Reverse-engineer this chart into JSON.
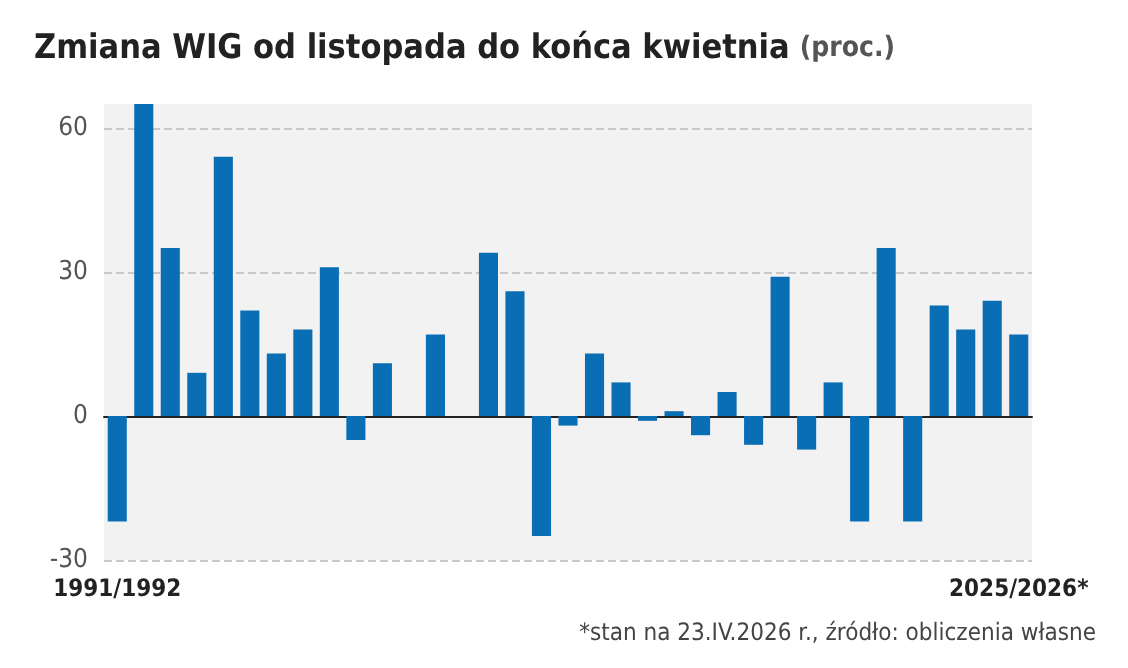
{
  "chart_data": {
    "type": "bar",
    "title": "Zmiana WIG od listopada do końca kwietnia",
    "subtitle": "(proc.)",
    "categories": [
      "1991/1992",
      null,
      null,
      null,
      null,
      null,
      null,
      null,
      null,
      null,
      null,
      null,
      null,
      null,
      null,
      null,
      null,
      null,
      null,
      null,
      null,
      null,
      null,
      null,
      null,
      null,
      null,
      null,
      null,
      null,
      null,
      null,
      null,
      null,
      "2025/2026*"
    ],
    "values": [
      -22,
      65,
      35,
      9,
      54,
      22,
      13,
      18,
      31,
      -5,
      11,
      null,
      17,
      null,
      34,
      26,
      -25,
      -2,
      13,
      7,
      -1,
      1,
      -4,
      5,
      -6,
      29,
      -7,
      7,
      -22,
      35,
      -22,
      23,
      18,
      24,
      17
    ],
    "color": "#0a6eb4",
    "ylim": [
      -30,
      65
    ],
    "yticks": [
      -30,
      0,
      30,
      60
    ],
    "grid": "y",
    "annotations": [
      "*stan na 23.IV.2026 r., źródło: obliczenia własne"
    ]
  }
}
